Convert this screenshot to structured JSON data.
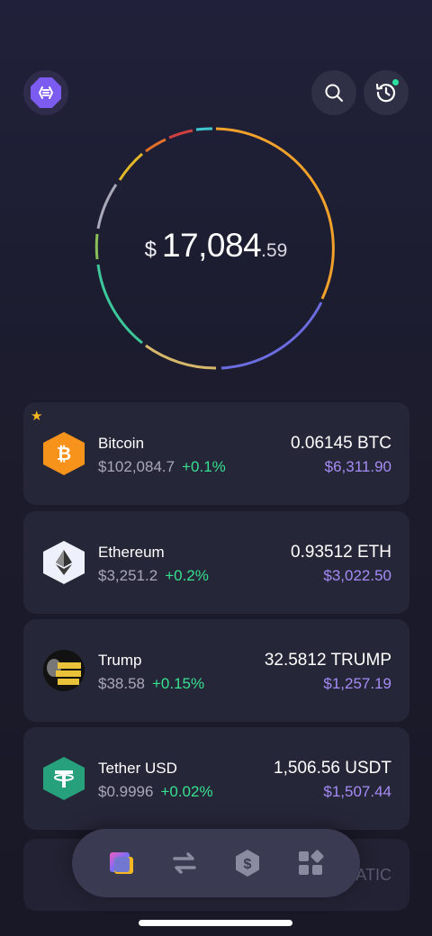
{
  "header": {
    "logo_icon": "wallet-logo-icon",
    "search_icon": "search-icon",
    "history_icon": "history-icon"
  },
  "portfolio": {
    "currency_symbol": "$",
    "balance_int": "17,084",
    "balance_dec": ".59"
  },
  "assets": [
    {
      "name": "Bitcoin",
      "price": "$102,084.7",
      "change": "+0.1%",
      "amount": "0.06145 BTC",
      "fiat": "$6,311.90",
      "icon": "bitcoin-icon",
      "color": "#f7931a",
      "starred": true
    },
    {
      "name": "Ethereum",
      "price": "$3,251.2",
      "change": "+0.2%",
      "amount": "0.93512 ETH",
      "fiat": "$3,022.50",
      "icon": "ethereum-icon",
      "color": "#eef0fb"
    },
    {
      "name": "Trump",
      "price": "$38.58",
      "change": "+0.15%",
      "amount": "32.5812 TRUMP",
      "fiat": "$1,257.19",
      "icon": "trump-icon",
      "color": "#111111"
    },
    {
      "name": "Tether USD",
      "price": "$0.9996",
      "change": "+0.02%",
      "amount": "1,506.56 USDT",
      "fiat": "$1,507.44",
      "icon": "tether-icon",
      "color": "#26a17b"
    }
  ],
  "peek": {
    "text": "ATIC"
  },
  "nav": {
    "items": [
      {
        "icon": "wallet-icon",
        "active": true
      },
      {
        "icon": "swap-icon"
      },
      {
        "icon": "dollar-hex-icon"
      },
      {
        "icon": "apps-grid-icon"
      }
    ]
  },
  "colors": {
    "accent": "#a58cf5",
    "positive": "#36e08e",
    "bitcoin": "#f7931a",
    "tether": "#26a17b"
  }
}
